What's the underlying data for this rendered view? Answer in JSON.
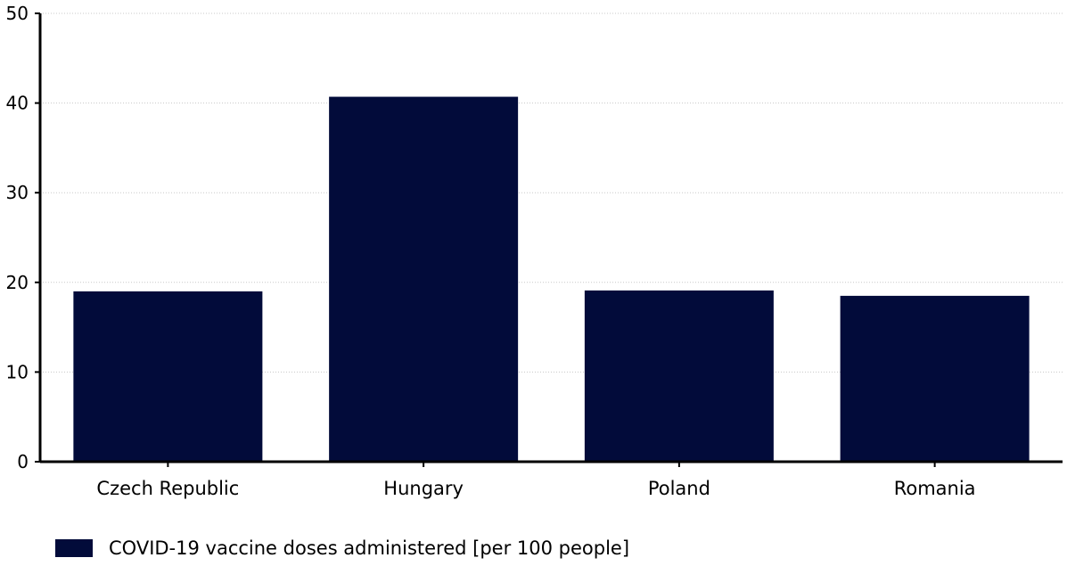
{
  "chart_data": {
    "type": "bar",
    "categories": [
      "Czech Republic",
      "Hungary",
      "Poland",
      "Romania"
    ],
    "series": [
      {
        "name": "COVID-19 vaccine doses administered [per 100 people]",
        "values": [
          19.0,
          40.7,
          19.1,
          18.5
        ],
        "color": "#020b3a"
      }
    ],
    "ylim": [
      0,
      50
    ],
    "yticks": [
      0,
      10,
      20,
      30,
      40,
      50
    ],
    "grid": true,
    "legend_position": "bottom-left"
  }
}
